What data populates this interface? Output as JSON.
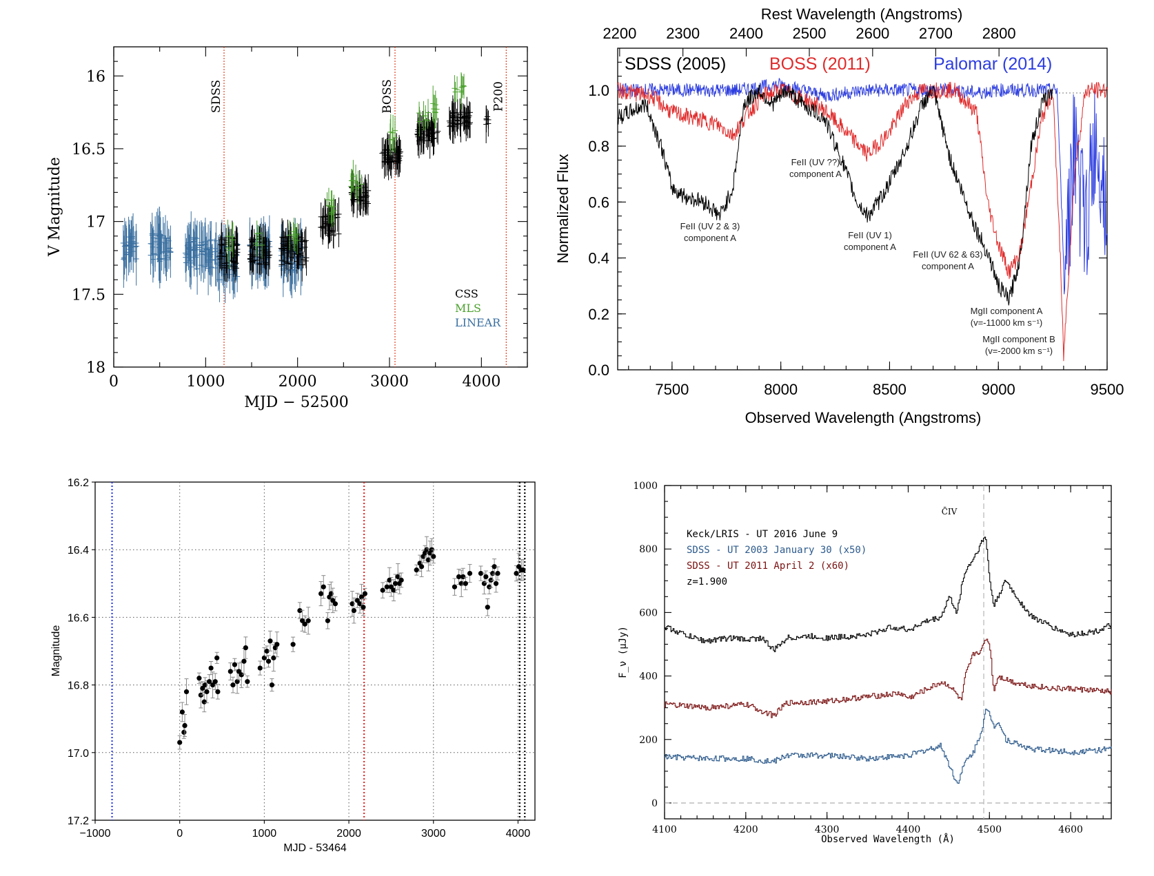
{
  "chart_data": [
    {
      "type": "scatter",
      "xlabel": "MJD − 52500",
      "ylabel": "V Magnitude",
      "xlim": [
        0,
        4500
      ],
      "ylim": [
        18,
        15.8
      ],
      "y_inverted": true,
      "xticks": [
        0,
        1000,
        2000,
        3000,
        4000
      ],
      "yticks": [
        16,
        16.5,
        17,
        17.5,
        18
      ],
      "markers": [
        {
          "label": "SDSS",
          "x": 1200
        },
        {
          "label": "BOSS",
          "x": 3060
        },
        {
          "label": "P200",
          "x": 4270
        }
      ],
      "legend": [
        "CSS",
        "MLS",
        "LINEAR"
      ],
      "colors": {
        "CSS": "#000000",
        "MLS": "#4aa02c",
        "LINEAR": "#3a6f9f",
        "marker": "#e0401f"
      },
      "series": [
        {
          "name": "LINEAR",
          "segments": [
            [
              100,
              250,
              17.18,
              0.18
            ],
            [
              400,
              620,
              17.18,
              0.2
            ],
            [
              780,
              1150,
              17.22,
              0.22
            ],
            [
              1150,
              1350,
              17.28,
              0.25
            ],
            [
              1480,
              1700,
              17.22,
              0.2
            ],
            [
              1820,
              2050,
              17.25,
              0.2
            ]
          ]
        },
        {
          "name": "CSS",
          "segments": [
            [
              1150,
              1350,
              17.22,
              0.22
            ],
            [
              1480,
              1700,
              17.2,
              0.2
            ],
            [
              1820,
              2100,
              17.2,
              0.2
            ],
            [
              2250,
              2450,
              17.02,
              0.15
            ],
            [
              2580,
              2780,
              16.82,
              0.12
            ],
            [
              2920,
              3120,
              16.55,
              0.1
            ],
            [
              3300,
              3530,
              16.4,
              0.1
            ],
            [
              3650,
              3880,
              16.3,
              0.1
            ],
            [
              4050,
              4080,
              16.3,
              0.08
            ]
          ]
        },
        {
          "name": "MLS",
          "segments": [
            [
              1230,
              1300,
              17.15,
              0.1
            ],
            [
              1550,
              1620,
              17.12,
              0.1
            ],
            [
              1900,
              2000,
              17.1,
              0.08
            ],
            [
              2300,
              2420,
              16.9,
              0.1
            ],
            [
              2580,
              2700,
              16.72,
              0.1
            ],
            [
              2980,
              3080,
              16.4,
              0.08
            ],
            [
              3320,
              3420,
              16.28,
              0.08
            ],
            [
              3470,
              3550,
              16.22,
              0.08
            ],
            [
              3700,
              3820,
              16.1,
              0.08
            ]
          ]
        }
      ]
    },
    {
      "type": "line",
      "title_top": "Rest Wavelength (Angstroms)",
      "xlabel": "Observed Wavelength (Angstroms)",
      "ylabel": "Normalized Flux",
      "xlim": [
        7250,
        9500
      ],
      "ylim": [
        0.0,
        1.15
      ],
      "xticks": [
        7500,
        8000,
        8500,
        9000,
        9500
      ],
      "yticks": [
        "0.0",
        "0.2",
        "0.4",
        "0.6",
        "0.8",
        "1.0"
      ],
      "top_ticks": [
        "2200",
        "2300",
        "2400",
        "2500",
        "2600",
        "2700",
        "2800"
      ],
      "top_tick_x": [
        7259,
        7550,
        7841,
        8131,
        8422,
        8712,
        9003
      ],
      "legend": [
        "SDSS (2005)",
        "BOSS (2011)",
        "Palomar (2014)"
      ],
      "colors": {
        "SDSS (2005)": "#000000",
        "BOSS (2011)": "#e02b2b",
        "Palomar (2014)": "#2c3de0"
      },
      "annotations": [
        {
          "l1": "FeII (UV 2 & 3)",
          "l2": "component A"
        },
        {
          "l1": "FeII (UV ??)",
          "l2": "component A"
        },
        {
          "l1": "FeII (UV 1)",
          "l2": "component A"
        },
        {
          "l1": "FeII (UV 62 & 63)",
          "l2": "component A"
        },
        {
          "l1": "MgII component A",
          "l2": "(v=-11000 km s⁻¹)"
        },
        {
          "l1": "MgII component B",
          "l2": "(v=-2000 km s⁻¹)"
        }
      ],
      "series": [
        {
          "name": "SDSS (2005)",
          "x": [
            7250,
            7300,
            7380,
            7450,
            7500,
            7560,
            7650,
            7720,
            7780,
            7830,
            7900,
            7960,
            8030,
            8100,
            8200,
            8280,
            8350,
            8400,
            8450,
            8520,
            8580,
            8650,
            8700,
            8780,
            8850,
            8900,
            8960,
            9000,
            9050,
            9100,
            9150,
            9200,
            9250
          ],
          "y": [
            0.9,
            0.92,
            0.95,
            0.8,
            0.65,
            0.62,
            0.6,
            0.55,
            0.65,
            0.95,
            1.0,
            0.95,
            1.0,
            0.95,
            0.9,
            0.75,
            0.6,
            0.55,
            0.6,
            0.7,
            0.8,
            0.95,
            1.0,
            0.75,
            0.6,
            0.5,
            0.4,
            0.3,
            0.25,
            0.4,
            0.8,
            0.95,
            1.0
          ]
        },
        {
          "name": "BOSS (2011)",
          "x": [
            7250,
            7400,
            7500,
            7600,
            7700,
            7780,
            7850,
            7920,
            8000,
            8100,
            8200,
            8300,
            8400,
            8500,
            8580,
            8650,
            8700,
            8800,
            8900,
            8950,
            9000,
            9050,
            9100,
            9200,
            9250,
            9280,
            9300,
            9350,
            9400,
            9500
          ],
          "y": [
            1.0,
            0.98,
            0.92,
            0.9,
            0.88,
            0.84,
            0.92,
            0.98,
            1.0,
            0.97,
            0.93,
            0.85,
            0.77,
            0.85,
            0.96,
            1.0,
            1.0,
            1.0,
            0.92,
            0.6,
            0.45,
            0.35,
            0.42,
            0.9,
            1.0,
            0.5,
            0.05,
            0.7,
            1.0,
            1.0
          ]
        },
        {
          "name": "Palomar (2014)",
          "x": [
            7250,
            7400,
            7600,
            7800,
            8000,
            8200,
            8400,
            8600,
            8800,
            8900,
            9000,
            9100,
            9200,
            9270,
            9300,
            9350,
            9400,
            9450,
            9500
          ],
          "y": [
            1.0,
            1.0,
            1.0,
            1.0,
            1.02,
            0.98,
            1.0,
            1.0,
            1.0,
            0.99,
            1.0,
            1.0,
            1.0,
            1.0,
            0.4,
            0.8,
            0.5,
            0.85,
            0.6
          ]
        }
      ]
    },
    {
      "type": "scatter",
      "xlabel": "MJD - 53464",
      "ylabel": "Magnitude",
      "xlim": [
        -1000,
        4200
      ],
      "ylim": [
        17.2,
        16.2
      ],
      "y_inverted": true,
      "xticks": [
        -1000,
        0,
        1000,
        2000,
        3000,
        4000
      ],
      "xticklabels": [
        "−1000",
        "0",
        "1000",
        "2000",
        "3000",
        "4000"
      ],
      "yticks": [
        16.2,
        16.4,
        16.6,
        16.8,
        17.0,
        17.2
      ],
      "yticklabels": [
        "16.2",
        "16.4",
        "16.6",
        "16.8",
        "17.0",
        "17.2"
      ],
      "markers": [
        {
          "x": -800,
          "color": "#2c3de0"
        },
        {
          "x": 2180,
          "color": "#e02b2b"
        },
        {
          "x": 4020,
          "color": "#000000"
        },
        {
          "x": 4080,
          "color": "#000000"
        }
      ],
      "points": [
        [
          0,
          16.97
        ],
        [
          30,
          16.88
        ],
        [
          50,
          16.94
        ],
        [
          60,
          16.92
        ],
        [
          80,
          16.82
        ],
        [
          230,
          16.78
        ],
        [
          250,
          16.83
        ],
        [
          270,
          16.81
        ],
        [
          290,
          16.85
        ],
        [
          300,
          16.8
        ],
        [
          320,
          16.82
        ],
        [
          350,
          16.79
        ],
        [
          370,
          16.75
        ],
        [
          390,
          16.8
        ],
        [
          420,
          16.79
        ],
        [
          440,
          16.72
        ],
        [
          450,
          16.82
        ],
        [
          600,
          16.76
        ],
        [
          630,
          16.8
        ],
        [
          650,
          16.74
        ],
        [
          680,
          16.79
        ],
        [
          700,
          16.76
        ],
        [
          730,
          16.77
        ],
        [
          760,
          16.73
        ],
        [
          780,
          16.69
        ],
        [
          800,
          16.79
        ],
        [
          950,
          16.75
        ],
        [
          1000,
          16.72
        ],
        [
          1030,
          16.7
        ],
        [
          1050,
          16.73
        ],
        [
          1070,
          16.67
        ],
        [
          1090,
          16.8
        ],
        [
          1110,
          16.72
        ],
        [
          1130,
          16.69
        ],
        [
          1150,
          16.68
        ],
        [
          1340,
          16.68
        ],
        [
          1420,
          16.58
        ],
        [
          1450,
          16.61
        ],
        [
          1480,
          16.62
        ],
        [
          1520,
          16.61
        ],
        [
          1670,
          16.53
        ],
        [
          1700,
          16.51
        ],
        [
          1750,
          16.61
        ],
        [
          1770,
          16.54
        ],
        [
          1790,
          16.53
        ],
        [
          1810,
          16.55
        ],
        [
          1840,
          16.56
        ],
        [
          2040,
          16.56
        ],
        [
          2060,
          16.58
        ],
        [
          2100,
          16.55
        ],
        [
          2130,
          16.56
        ],
        [
          2150,
          16.54
        ],
        [
          2170,
          16.57
        ],
        [
          2190,
          16.53
        ],
        [
          2400,
          16.52
        ],
        [
          2450,
          16.51
        ],
        [
          2480,
          16.49
        ],
        [
          2500,
          16.51
        ],
        [
          2530,
          16.52
        ],
        [
          2550,
          16.5
        ],
        [
          2580,
          16.48
        ],
        [
          2600,
          16.5
        ],
        [
          2620,
          16.49
        ],
        [
          2800,
          16.46
        ],
        [
          2840,
          16.44
        ],
        [
          2860,
          16.45
        ],
        [
          2880,
          16.42
        ],
        [
          2900,
          16.41
        ],
        [
          2920,
          16.4
        ],
        [
          2940,
          16.43
        ],
        [
          2960,
          16.41
        ],
        [
          2980,
          16.4
        ],
        [
          3000,
          16.42
        ],
        [
          3250,
          16.51
        ],
        [
          3300,
          16.48
        ],
        [
          3330,
          16.5
        ],
        [
          3350,
          16.48
        ],
        [
          3380,
          16.5
        ],
        [
          3430,
          16.47
        ],
        [
          3560,
          16.47
        ],
        [
          3600,
          16.5
        ],
        [
          3620,
          16.48
        ],
        [
          3640,
          16.57
        ],
        [
          3660,
          16.51
        ],
        [
          3680,
          16.49
        ],
        [
          3700,
          16.47
        ],
        [
          3720,
          16.45
        ],
        [
          3740,
          16.5
        ],
        [
          3760,
          16.47
        ],
        [
          3980,
          16.47
        ],
        [
          4010,
          16.45
        ],
        [
          4040,
          16.46
        ],
        [
          4060,
          16.46
        ]
      ]
    },
    {
      "type": "line",
      "xlabel": "Observed Wavelength (Å)",
      "ylabel": "F_ν (μJy)",
      "xlim": [
        4100,
        4650
      ],
      "ylim": [
        -50,
        1000
      ],
      "xticks": [
        4100,
        4200,
        4300,
        4400,
        4500,
        4600
      ],
      "yticks": [
        0,
        200,
        400,
        600,
        800,
        1000
      ],
      "line_marker": {
        "x": 4493,
        "label": "C̄IV"
      },
      "legend": [
        "Keck/LRIS - UT 2016 June 9",
        "SDSS - UT 2003 January 30 (x50)",
        "SDSS - UT 2011 April 2 (x60)",
        "z=1.900"
      ],
      "colors": {
        "Keck/LRIS - UT 2016 June 9": "#000000",
        "SDSS - UT 2003 January 30 (x50)": "#2c5a8c",
        "SDSS - UT 2011 April 2 (x60)": "#7a1010"
      },
      "series": [
        {
          "name": "Keck/LRIS - UT 2016 June 9",
          "x": [
            4100,
            4130,
            4150,
            4180,
            4200,
            4220,
            4234,
            4250,
            4280,
            4300,
            4330,
            4350,
            4380,
            4400,
            4420,
            4440,
            4450,
            4460,
            4465,
            4470,
            4480,
            4490,
            4495,
            4500,
            4505,
            4510,
            4520,
            4530,
            4550,
            4580,
            4600,
            4630,
            4650
          ],
          "y": [
            555,
            525,
            510,
            520,
            515,
            520,
            480,
            520,
            525,
            520,
            525,
            530,
            555,
            545,
            570,
            585,
            650,
            600,
            680,
            730,
            770,
            820,
            840,
            700,
            620,
            650,
            700,
            660,
            590,
            550,
            530,
            540,
            560
          ]
        },
        {
          "name": "SDSS - UT 2011 April 2 (x60)",
          "x": [
            4100,
            4150,
            4200,
            4234,
            4250,
            4300,
            4350,
            4390,
            4400,
            4440,
            4450,
            4460,
            4465,
            4470,
            4480,
            4490,
            4495,
            4500,
            4505,
            4510,
            4520,
            4530,
            4550,
            4580,
            4600,
            4650
          ],
          "y": [
            310,
            300,
            310,
            275,
            315,
            320,
            335,
            345,
            330,
            380,
            370,
            340,
            320,
            400,
            470,
            480,
            520,
            500,
            350,
            400,
            390,
            380,
            370,
            360,
            360,
            350
          ]
        },
        {
          "name": "SDSS - UT 2003 January 30 (x50)",
          "x": [
            4100,
            4150,
            4200,
            4234,
            4250,
            4300,
            4350,
            4400,
            4440,
            4450,
            4460,
            4470,
            4480,
            4490,
            4495,
            4500,
            4505,
            4510,
            4520,
            4550,
            4580,
            4600,
            4650
          ],
          "y": [
            145,
            140,
            140,
            130,
            150,
            150,
            140,
            150,
            180,
            120,
            60,
            130,
            160,
            230,
            290,
            280,
            240,
            260,
            200,
            170,
            165,
            160,
            170
          ]
        }
      ]
    }
  ]
}
